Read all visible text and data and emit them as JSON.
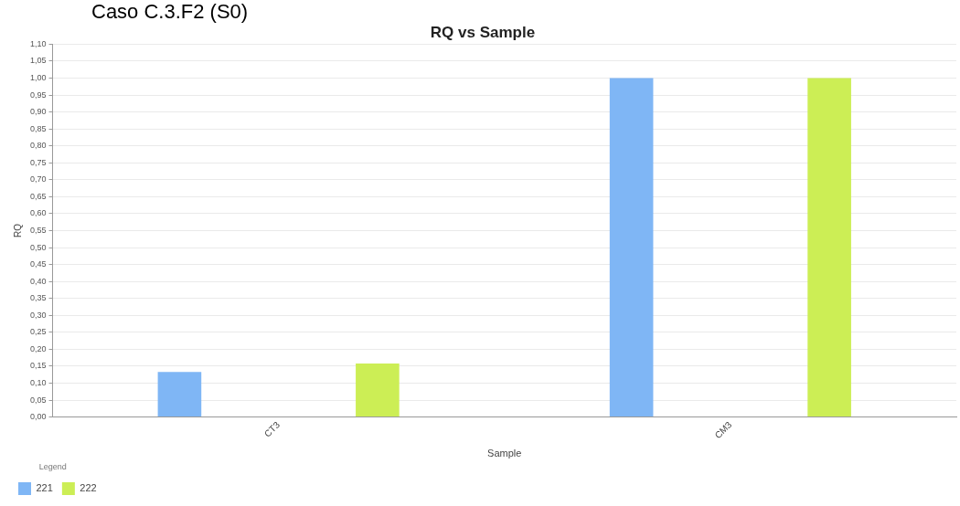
{
  "chart_data": {
    "type": "bar",
    "title": "RQ vs Sample",
    "subtitle": "Caso C.3.F2 (S0)",
    "xlabel": "Sample",
    "ylabel": "RQ",
    "legend_title": "Legend",
    "categories": [
      "CT3",
      "CM3"
    ],
    "series": [
      {
        "name": "221",
        "color": "#7fb6f5",
        "values": [
          0.133,
          1.0
        ]
      },
      {
        "name": "222",
        "color": "#ccee55",
        "values": [
          0.158,
          1.0
        ]
      }
    ],
    "ylim": [
      0,
      1.1
    ],
    "yticks": [
      {
        "value": 0,
        "label": "0,00"
      },
      {
        "value": 0.05,
        "label": "0,05"
      },
      {
        "value": 0.1,
        "label": "0,10"
      },
      {
        "value": 0.15,
        "label": "0,15"
      },
      {
        "value": 0.2,
        "label": "0,20"
      },
      {
        "value": 0.25,
        "label": "0,25"
      },
      {
        "value": 0.3,
        "label": "0,30"
      },
      {
        "value": 0.35,
        "label": "0,35"
      },
      {
        "value": 0.4,
        "label": "0,40"
      },
      {
        "value": 0.45,
        "label": "0,45"
      },
      {
        "value": 0.5,
        "label": "0,50"
      },
      {
        "value": 0.55,
        "label": "0,55"
      },
      {
        "value": 0.6,
        "label": "0,60"
      },
      {
        "value": 0.65,
        "label": "0,65"
      },
      {
        "value": 0.7,
        "label": "0,70"
      },
      {
        "value": 0.75,
        "label": "0,75"
      },
      {
        "value": 0.8,
        "label": "0,80"
      },
      {
        "value": 0.85,
        "label": "0,85"
      },
      {
        "value": 0.9,
        "label": "0,90"
      },
      {
        "value": 0.95,
        "label": "0,95"
      },
      {
        "value": 1,
        "label": "1,00"
      },
      {
        "value": 1.05,
        "label": "1,05"
      },
      {
        "value": 1.1,
        "label": "1,10"
      }
    ],
    "grid": "y",
    "legend": "bottom"
  }
}
